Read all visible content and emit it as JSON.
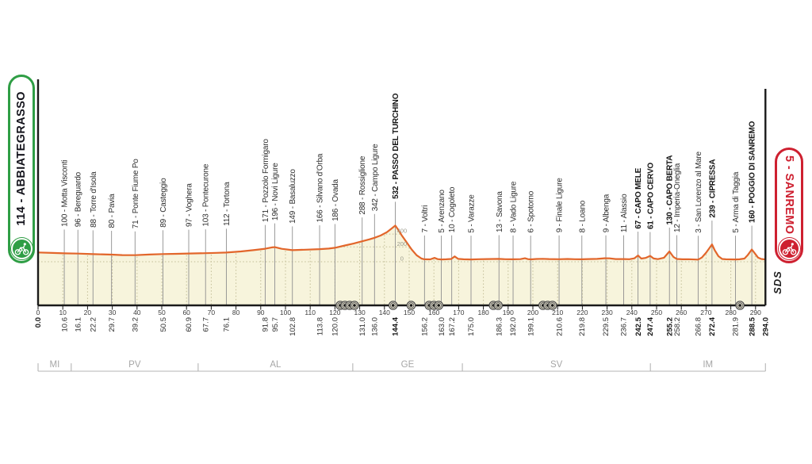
{
  "badges": {
    "start": {
      "label": "114 - ABBIATEGRASSO",
      "color": "#2f9e45"
    },
    "finish": {
      "label": "5 - SANREMO",
      "color": "#ce2030"
    }
  },
  "sds_label": "SDS",
  "colors": {
    "profile_line": "#e2662b",
    "terrain_fill": "#f7f4dc",
    "checkpoint_line": "#8f8f8f",
    "grid_dotted": "#c2bd96",
    "axis": "#1a1a1a",
    "tick_text": "#3c3c3c",
    "label_text": "#2e2e2e",
    "label_text_bold": "#141414",
    "province_text": "#a6a6a6",
    "province_line": "#b5b5b5",
    "elev_label_text": "#9a9a8c",
    "tunnel_ring": "#4a4a4a",
    "tunnel_fill": "#e9e5d2",
    "tunnel_dot": "#161616"
  },
  "chart_data": {
    "type": "area",
    "x_axis": {
      "unit": "km",
      "min": 0,
      "max": 294,
      "tick_min": 0,
      "tick_max": 290,
      "tick_step": 10
    },
    "y_axis": {
      "unit": "m",
      "gridlines": [
        0,
        200,
        400
      ],
      "gridline_labels": [
        "0",
        "200",
        "400"
      ],
      "label_at_km": 145.8
    },
    "checkpoints": [
      {
        "km": 0.0,
        "label": "",
        "bold": true
      },
      {
        "km": 10.6,
        "label": "100 - Motta Visconti",
        "bold": false
      },
      {
        "km": 16.1,
        "label": "96 - Bereguardo",
        "bold": false
      },
      {
        "km": 22.2,
        "label": "88 - Torre d'Isola",
        "bold": false
      },
      {
        "km": 29.7,
        "label": "80 - Pavia",
        "bold": false
      },
      {
        "km": 39.2,
        "label": "71 - Ponte Fiume Po",
        "bold": false
      },
      {
        "km": 50.5,
        "label": "89 - Casteggio",
        "bold": false
      },
      {
        "km": 60.9,
        "label": "97 - Voghera",
        "bold": false
      },
      {
        "km": 67.7,
        "label": "103 - Pontecurone",
        "bold": false
      },
      {
        "km": 76.1,
        "label": "112 - Tortona",
        "bold": false
      },
      {
        "km": 91.8,
        "label": "171 - Pozzolo Formigaro",
        "bold": false
      },
      {
        "km": 95.7,
        "label": "196 - Novi Ligure",
        "bold": false
      },
      {
        "km": 102.8,
        "label": "149 - Basaluzzo",
        "bold": false
      },
      {
        "km": 113.8,
        "label": "166 - Silvano d'Orba",
        "bold": false
      },
      {
        "km": 120.0,
        "label": "186 - Ovada",
        "bold": false
      },
      {
        "km": 131.0,
        "label": "288 - Rossiglione",
        "bold": false
      },
      {
        "km": 136.0,
        "label": "342 - Campo Ligure",
        "bold": false
      },
      {
        "km": 144.4,
        "label": "532 - PASSO DEL TURCHINO",
        "bold": true
      },
      {
        "km": 156.2,
        "label": "7 - Voltri",
        "bold": false
      },
      {
        "km": 163.0,
        "label": "5 - Arenzano",
        "bold": false
      },
      {
        "km": 167.2,
        "label": "10 - Cogoleto",
        "bold": false
      },
      {
        "km": 175.0,
        "label": "5 - Varazze",
        "bold": false
      },
      {
        "km": 186.3,
        "label": "13 - Savona",
        "bold": false
      },
      {
        "km": 192.0,
        "label": "8 - Vado Ligure",
        "bold": false
      },
      {
        "km": 199.1,
        "label": "6 - Spotorno",
        "bold": false
      },
      {
        "km": 210.6,
        "label": "9 - Finale Ligure",
        "bold": false
      },
      {
        "km": 219.8,
        "label": "8 - Loano",
        "bold": false
      },
      {
        "km": 229.5,
        "label": "9 - Albenga",
        "bold": false
      },
      {
        "km": 236.7,
        "label": "11 - Alassio",
        "bold": false
      },
      {
        "km": 242.5,
        "label": "67 - CAPO MELE",
        "bold": true
      },
      {
        "km": 247.4,
        "label": "61 - CAPO CERVO",
        "bold": true
      },
      {
        "km": 255.2,
        "label": "130 - CAPO BERTA",
        "bold": true
      },
      {
        "km": 258.2,
        "label": "12 - Imperia-Oneglia",
        "bold": false
      },
      {
        "km": 266.8,
        "label": "3 - San Lorenzo al Mare",
        "bold": false
      },
      {
        "km": 272.4,
        "label": "239 - CIPRESSA",
        "bold": true
      },
      {
        "km": 281.9,
        "label": "5 - Arma di Taggia",
        "bold": false
      },
      {
        "km": 288.5,
        "label": "160 - POGGIO DI SANREMO",
        "bold": true
      },
      {
        "km": 294.0,
        "label": "",
        "bold": true
      }
    ],
    "profile": [
      [
        0,
        114
      ],
      [
        6,
        106
      ],
      [
        10.6,
        100
      ],
      [
        16.1,
        96
      ],
      [
        22.2,
        88
      ],
      [
        29.7,
        80
      ],
      [
        34,
        73
      ],
      [
        39.2,
        71
      ],
      [
        45,
        81
      ],
      [
        50.5,
        89
      ],
      [
        56,
        93
      ],
      [
        60.9,
        97
      ],
      [
        67.7,
        103
      ],
      [
        72,
        107
      ],
      [
        76.1,
        112
      ],
      [
        82,
        130
      ],
      [
        87,
        150
      ],
      [
        91.8,
        171
      ],
      [
        94.5,
        192
      ],
      [
        95.7,
        196
      ],
      [
        98.5,
        170
      ],
      [
        102.8,
        149
      ],
      [
        108,
        157
      ],
      [
        113.8,
        166
      ],
      [
        117.5,
        174
      ],
      [
        120,
        186
      ],
      [
        124,
        222
      ],
      [
        127.5,
        252
      ],
      [
        131,
        288
      ],
      [
        134,
        318
      ],
      [
        136,
        342
      ],
      [
        138.5,
        378
      ],
      [
        141,
        430
      ],
      [
        143.2,
        495
      ],
      [
        144.4,
        532
      ],
      [
        145.5,
        470
      ],
      [
        147,
        380
      ],
      [
        149,
        270
      ],
      [
        151,
        160
      ],
      [
        153,
        70
      ],
      [
        155,
        18
      ],
      [
        156.2,
        7
      ],
      [
        158.5,
        6
      ],
      [
        160.3,
        30
      ],
      [
        161.5,
        10
      ],
      [
        163,
        5
      ],
      [
        165,
        8
      ],
      [
        167,
        12
      ],
      [
        168.4,
        52
      ],
      [
        169.8,
        14
      ],
      [
        172,
        7
      ],
      [
        175,
        5
      ],
      [
        178,
        9
      ],
      [
        181.5,
        11
      ],
      [
        186.3,
        13
      ],
      [
        189,
        9
      ],
      [
        192,
        8
      ],
      [
        195,
        10
      ],
      [
        196.8,
        24
      ],
      [
        198,
        10
      ],
      [
        199.1,
        6
      ],
      [
        201.5,
        12
      ],
      [
        204,
        15
      ],
      [
        206.5,
        11
      ],
      [
        210.6,
        9
      ],
      [
        214,
        12
      ],
      [
        217,
        9
      ],
      [
        219.8,
        8
      ],
      [
        222.5,
        11
      ],
      [
        226,
        14
      ],
      [
        229,
        24
      ],
      [
        231,
        22
      ],
      [
        233.5,
        11
      ],
      [
        236.7,
        11
      ],
      [
        239,
        9
      ],
      [
        241,
        22
      ],
      [
        242.5,
        67
      ],
      [
        243.8,
        18
      ],
      [
        245.5,
        28
      ],
      [
        247.4,
        61
      ],
      [
        248.8,
        20
      ],
      [
        250.5,
        10
      ],
      [
        253,
        32
      ],
      [
        255.2,
        130
      ],
      [
        256.8,
        45
      ],
      [
        258.2,
        12
      ],
      [
        260.5,
        8
      ],
      [
        263,
        9
      ],
      [
        266.8,
        3
      ],
      [
        268.3,
        35
      ],
      [
        270,
        110
      ],
      [
        271.5,
        190
      ],
      [
        272.4,
        239
      ],
      [
        273.5,
        150
      ],
      [
        275,
        55
      ],
      [
        276.5,
        12
      ],
      [
        278,
        8
      ],
      [
        280,
        6
      ],
      [
        281.9,
        5
      ],
      [
        283.5,
        7
      ],
      [
        285.5,
        18
      ],
      [
        286.8,
        70
      ],
      [
        288.5,
        160
      ],
      [
        289.8,
        95
      ],
      [
        291,
        35
      ],
      [
        292.3,
        12
      ],
      [
        294,
        5
      ]
    ],
    "provinces": [
      {
        "label": "MI",
        "from_km": 0,
        "to_km": 13.4
      },
      {
        "label": "PV",
        "from_km": 13.4,
        "to_km": 64.7
      },
      {
        "label": "AL",
        "from_km": 64.7,
        "to_km": 127.2
      },
      {
        "label": "GE",
        "from_km": 127.2,
        "to_km": 171.5
      },
      {
        "label": "SV",
        "from_km": 171.5,
        "to_km": 247.5
      },
      {
        "label": "IM",
        "from_km": 247.5,
        "to_km": 294
      }
    ],
    "tunnels": [
      {
        "km": 125,
        "count": 4
      },
      {
        "km": 143.5,
        "count": 1
      },
      {
        "km": 150.8,
        "count": 1
      },
      {
        "km": 160,
        "count": 3
      },
      {
        "km": 185,
        "count": 2
      },
      {
        "km": 206,
        "count": 3
      },
      {
        "km": 283.7,
        "count": 1
      }
    ]
  }
}
